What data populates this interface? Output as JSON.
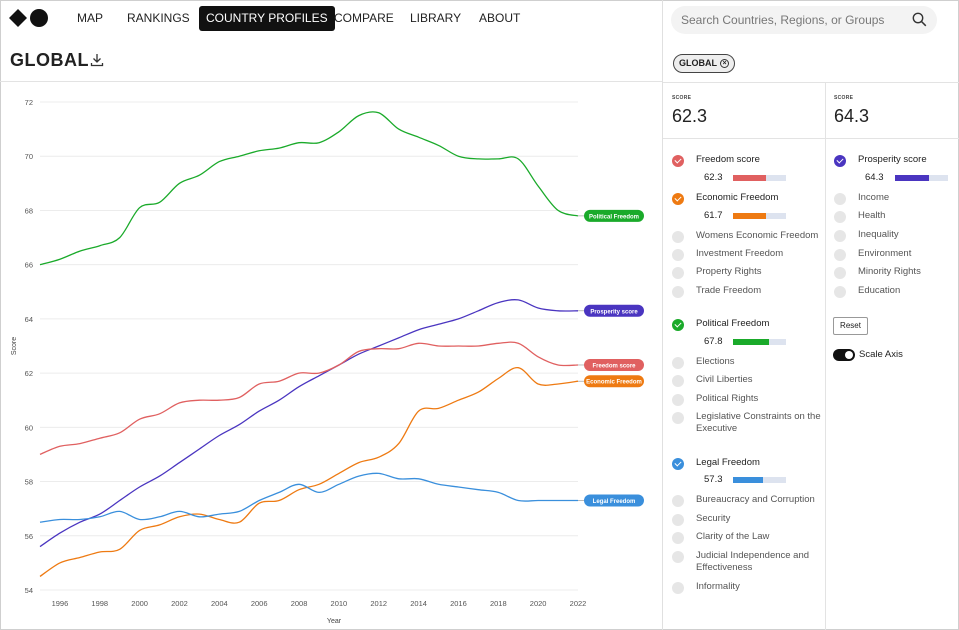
{
  "nav": {
    "items": [
      "MAP",
      "RANKINGS",
      "COUNTRY PROFILES",
      "COMPARE",
      "LIBRARY",
      "ABOUT"
    ],
    "active": "COUNTRY PROFILES"
  },
  "page": {
    "title": "GLOBAL"
  },
  "search": {
    "placeholder": "Search Countries, Regions, or Groups"
  },
  "filter_chip": {
    "label": "GLOBAL"
  },
  "scores": {
    "left": {
      "label": "SCORE",
      "value": "62.3"
    },
    "right": {
      "label": "SCORE",
      "value": "64.3"
    }
  },
  "indicators": {
    "freedom_score": {
      "label": "Freedom score",
      "value": "62.3",
      "fraction": 0.623,
      "color": "#e06060"
    },
    "economic_freedom": {
      "label": "Economic Freedom",
      "value": "61.7",
      "fraction": 0.617,
      "color": "#ee7a12"
    },
    "economic_subs": [
      "Womens Economic Freedom",
      "Investment Freedom",
      "Property Rights",
      "Trade Freedom"
    ],
    "political_freedom": {
      "label": "Political Freedom",
      "value": "67.8",
      "fraction": 0.678,
      "color": "#1aaa2a"
    },
    "political_subs": [
      "Elections",
      "Civil Liberties",
      "Political Rights",
      "Legislative Constraints on the Executive"
    ],
    "legal_freedom": {
      "label": "Legal Freedom",
      "value": "57.3",
      "fraction": 0.573,
      "color": "#3a8fdc"
    },
    "legal_subs": [
      "Bureaucracy and Corruption",
      "Security",
      "Clarity of the Law",
      "Judicial Independence and Effectiveness",
      "Informality"
    ],
    "prosperity_score": {
      "label": "Prosperity score",
      "value": "64.3",
      "fraction": 0.643,
      "color": "#4a35c0"
    },
    "prosperity_subs": [
      "Income",
      "Health",
      "Inequality",
      "Environment",
      "Minority Rights",
      "Education"
    ]
  },
  "controls": {
    "reset_label": "Reset",
    "scale_axis_label": "Scale Axis",
    "scale_axis_on": true
  },
  "chart_data": {
    "type": "line",
    "xlabel": "Year",
    "ylabel": "Score",
    "xlim": [
      1995,
      2022
    ],
    "ylim": [
      54,
      72
    ],
    "x_ticks": [
      1996,
      1998,
      2000,
      2002,
      2004,
      2006,
      2008,
      2010,
      2012,
      2014,
      2016,
      2018,
      2020,
      2022
    ],
    "y_ticks": [
      54,
      56,
      58,
      60,
      62,
      64,
      66,
      68,
      70,
      72
    ],
    "grid": true,
    "x": [
      1995,
      1996,
      1997,
      1998,
      1999,
      2000,
      2001,
      2002,
      2003,
      2004,
      2005,
      2006,
      2007,
      2008,
      2009,
      2010,
      2011,
      2012,
      2013,
      2014,
      2015,
      2016,
      2017,
      2018,
      2019,
      2020,
      2021,
      2022
    ],
    "series": [
      {
        "name": "Political Freedom",
        "color": "#1aaa2a",
        "values": [
          66.0,
          66.2,
          66.5,
          66.7,
          67.0,
          68.1,
          68.3,
          69.0,
          69.3,
          69.8,
          70.0,
          70.2,
          70.3,
          70.5,
          70.5,
          70.9,
          71.5,
          71.6,
          71.0,
          70.7,
          70.4,
          70.0,
          69.9,
          69.9,
          69.9,
          68.9,
          68.0,
          67.8
        ]
      },
      {
        "name": "Prosperity score",
        "color": "#4a35c0",
        "values": [
          55.6,
          56.1,
          56.5,
          56.8,
          57.3,
          57.8,
          58.2,
          58.7,
          59.2,
          59.7,
          60.1,
          60.6,
          61.0,
          61.5,
          61.9,
          62.3,
          62.7,
          63.0,
          63.3,
          63.6,
          63.8,
          64.0,
          64.3,
          64.6,
          64.7,
          64.4,
          64.3,
          64.3
        ]
      },
      {
        "name": "Freedom score",
        "color": "#e06060",
        "values": [
          59.0,
          59.3,
          59.4,
          59.6,
          59.8,
          60.3,
          60.5,
          60.9,
          61.0,
          61.0,
          61.1,
          61.6,
          61.7,
          62.0,
          62.0,
          62.3,
          62.8,
          62.9,
          62.9,
          63.1,
          63.0,
          63.0,
          63.0,
          63.1,
          63.1,
          62.6,
          62.3,
          62.3
        ]
      },
      {
        "name": "Economic Freedom",
        "color": "#ee7a12",
        "values": [
          54.5,
          55.0,
          55.2,
          55.4,
          55.5,
          56.2,
          56.4,
          56.7,
          56.8,
          56.6,
          56.5,
          57.2,
          57.3,
          57.7,
          57.9,
          58.3,
          58.7,
          58.9,
          59.4,
          60.6,
          60.7,
          61.0,
          61.3,
          61.8,
          62.2,
          61.6,
          61.6,
          61.7
        ]
      },
      {
        "name": "Legal Freedom",
        "color": "#3a8fdc",
        "values": [
          56.5,
          56.6,
          56.6,
          56.7,
          56.9,
          56.6,
          56.7,
          56.9,
          56.7,
          56.8,
          56.9,
          57.3,
          57.6,
          57.9,
          57.6,
          57.9,
          58.2,
          58.3,
          58.1,
          58.1,
          57.9,
          57.8,
          57.7,
          57.6,
          57.3,
          57.3,
          57.3,
          57.3
        ]
      }
    ],
    "end_labels": [
      "Political Freedom",
      "Prosperity score",
      "Freedom score",
      "Economic Freedom",
      "Legal Freedom"
    ]
  }
}
